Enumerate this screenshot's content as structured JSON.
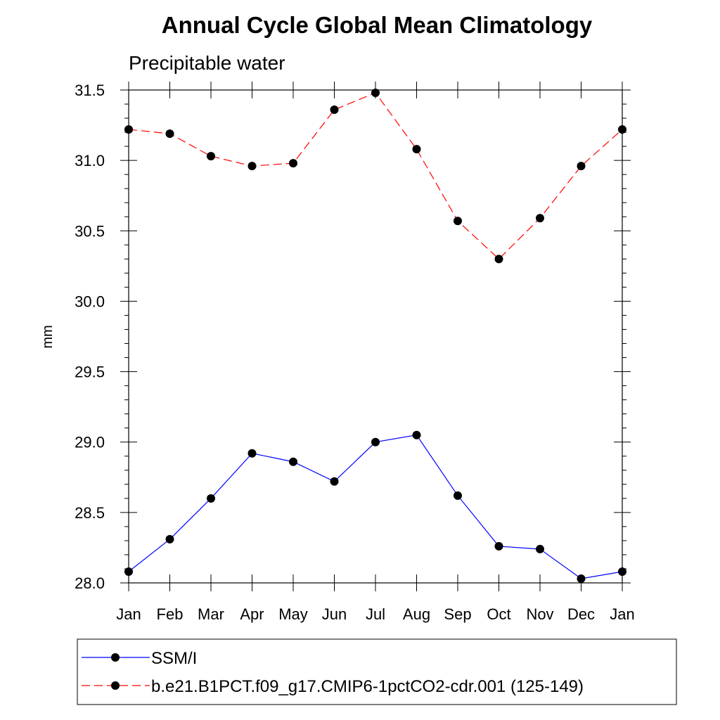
{
  "chart_data": {
    "type": "line",
    "title": "Annual Cycle Global Mean Climatology",
    "subtitle": "Precipitable water",
    "xlabel": "",
    "ylabel": "mm",
    "categories": [
      "Jan",
      "Feb",
      "Mar",
      "Apr",
      "May",
      "Jun",
      "Jul",
      "Aug",
      "Sep",
      "Oct",
      "Nov",
      "Dec",
      "Jan"
    ],
    "ylim": [
      28.0,
      31.5
    ],
    "yticks": [
      "28.0",
      "28.5",
      "29.0",
      "29.5",
      "30.0",
      "30.5",
      "31.0",
      "31.5"
    ],
    "grid": false,
    "legend_position": "bottom",
    "series": [
      {
        "name": "SSM/I",
        "color": "#0000ff",
        "dash": "solid",
        "values": [
          28.08,
          28.31,
          28.6,
          28.92,
          28.86,
          28.72,
          29.0,
          29.05,
          28.62,
          28.26,
          28.24,
          28.03,
          28.08
        ]
      },
      {
        "name": "b.e21.B1PCT.f09_g17.CMIP6-1pctCO2-cdr.001 (125-149)",
        "color": "#ff0000",
        "dash": "dashed",
        "values": [
          31.22,
          31.19,
          31.03,
          30.96,
          30.98,
          31.36,
          31.48,
          31.08,
          30.57,
          30.3,
          30.59,
          30.96,
          31.22
        ]
      }
    ]
  }
}
